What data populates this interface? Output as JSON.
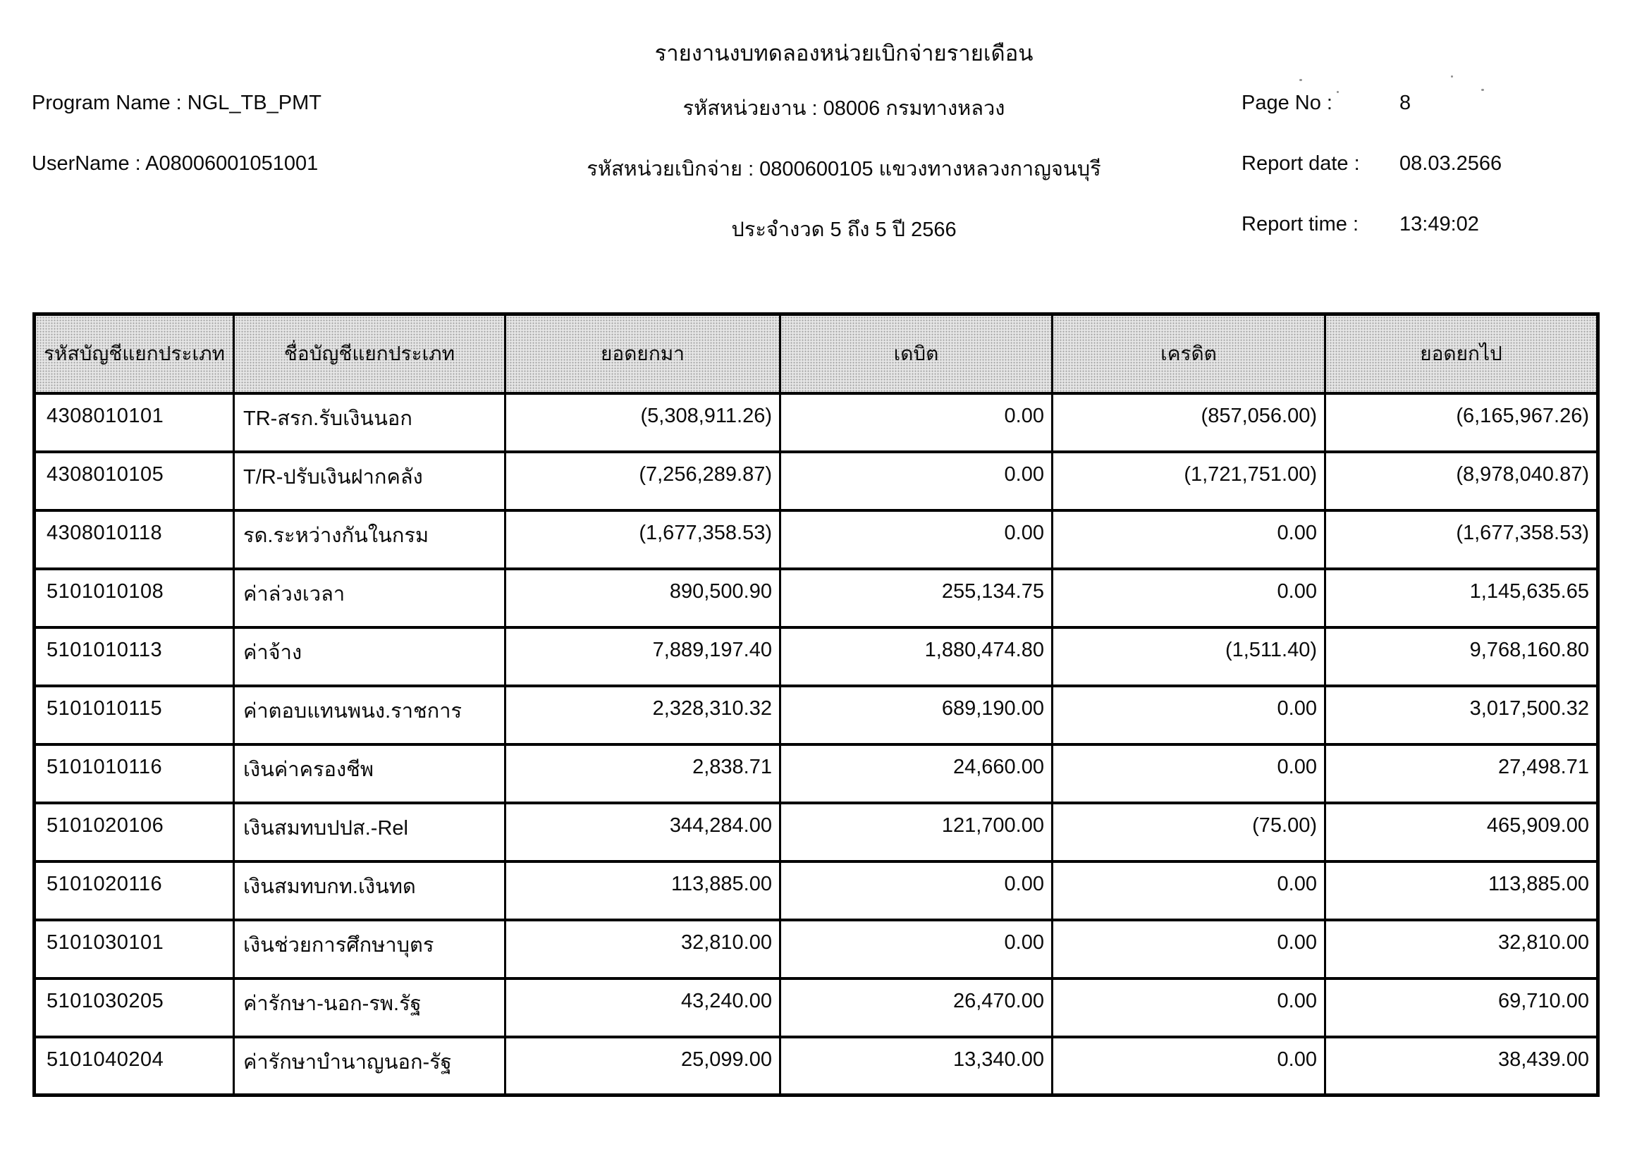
{
  "page_title": "รายงานงบทดลองหน่วยเบิกจ่ายรายเดือน",
  "header": {
    "left": {
      "program_name": "Program Name : NGL_TB_PMT",
      "username": "UserName : A08006001051001"
    },
    "center": {
      "agency": "รหัสหน่วยงาน : 08006 กรมทางหลวง",
      "disbursement_unit": "รหัสหน่วยเบิกจ่าย : 0800600105 แขวงทางหลวงกาญจนบุรี",
      "period": "ประจำงวด 5 ถึง 5 ปี 2566"
    },
    "right": {
      "page_no_label": "Page No :",
      "page_no": "8",
      "report_date_label": "Report date :",
      "report_date": "08.03.2566",
      "report_time_label": "Report time :",
      "report_time": "13:49:02"
    }
  },
  "table": {
    "headers": [
      "รหัสบัญชีแยกประเภท",
      "ชื่อบัญชีแยกประเภท",
      "ยอดยกมา",
      "เดบิต",
      "เครดิต",
      "ยอดยกไป"
    ],
    "rows": [
      [
        "4308010101",
        "TR-สรก.รับเงินนอก",
        "(5,308,911.26)",
        "0.00",
        "(857,056.00)",
        "(6,165,967.26)"
      ],
      [
        "4308010105",
        "T/R-ปรับเงินฝากคลัง",
        "(7,256,289.87)",
        "0.00",
        "(1,721,751.00)",
        "(8,978,040.87)"
      ],
      [
        "4308010118",
        "รด.ระหว่างกันในกรม",
        "(1,677,358.53)",
        "0.00",
        "0.00",
        "(1,677,358.53)"
      ],
      [
        "5101010108",
        "ค่าล่วงเวลา",
        "890,500.90",
        "255,134.75",
        "0.00",
        "1,145,635.65"
      ],
      [
        "5101010113",
        "ค่าจ้าง",
        "7,889,197.40",
        "1,880,474.80",
        "(1,511.40)",
        "9,768,160.80"
      ],
      [
        "5101010115",
        "ค่าตอบแทนพนง.ราชการ",
        "2,328,310.32",
        "689,190.00",
        "0.00",
        "3,017,500.32"
      ],
      [
        "5101010116",
        "เงินค่าครองชีพ",
        "2,838.71",
        "24,660.00",
        "0.00",
        "27,498.71"
      ],
      [
        "5101020106",
        "เงินสมทบปปส.-Rel",
        "344,284.00",
        "121,700.00",
        "(75.00)",
        "465,909.00"
      ],
      [
        "5101020116",
        "เงินสมทบกท.เงินทด",
        "113,885.00",
        "0.00",
        "0.00",
        "113,885.00"
      ],
      [
        "5101030101",
        "เงินช่วยการศึกษาบุตร",
        "32,810.00",
        "0.00",
        "0.00",
        "32,810.00"
      ],
      [
        "5101030205",
        "ค่ารักษา-นอก-รพ.รัฐ",
        "43,240.00",
        "26,470.00",
        "0.00",
        "69,710.00"
      ],
      [
        "5101040204",
        "ค่ารักษาบำนาญนอก-รัฐ",
        "25,099.00",
        "13,340.00",
        "0.00",
        "38,439.00"
      ]
    ]
  }
}
